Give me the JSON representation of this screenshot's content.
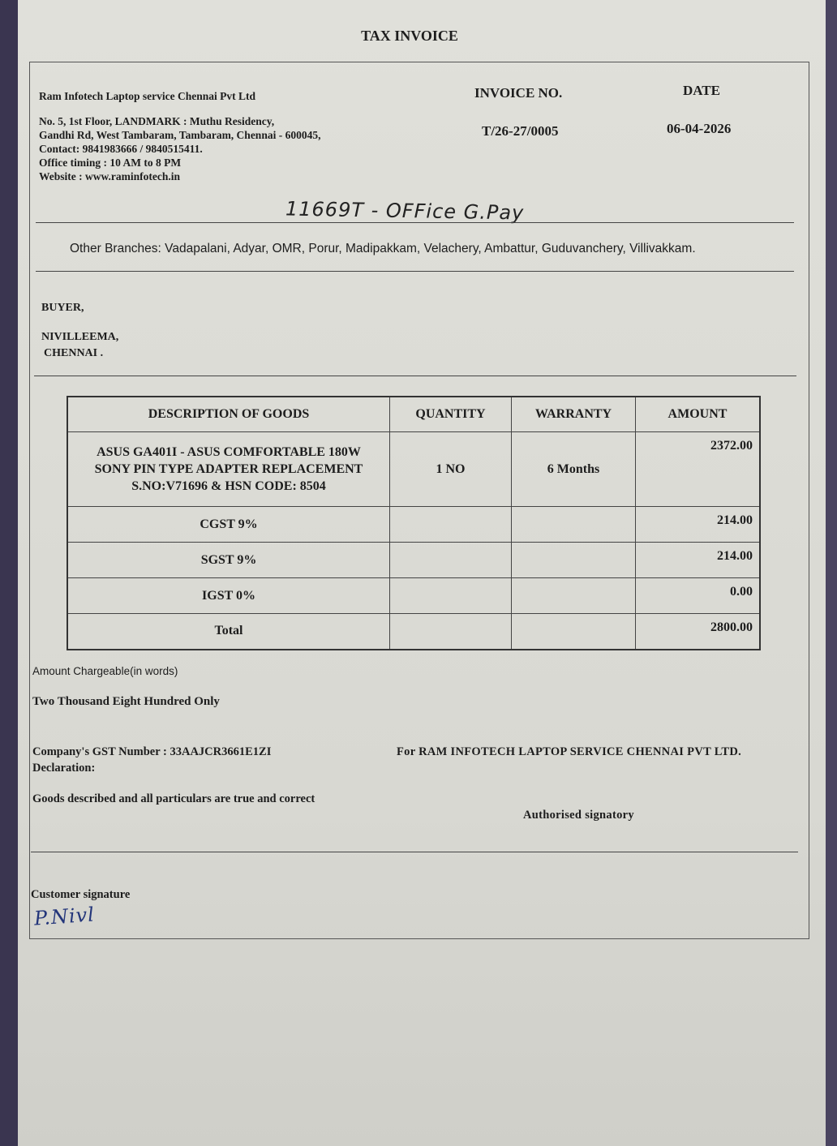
{
  "title": "TAX INVOICE",
  "company": {
    "name": "Ram Infotech Laptop service Chennai Pvt Ltd",
    "address_line1": "No. 5, 1st Floor, LANDMARK : Muthu Residency,",
    "address_line2": "Gandhi Rd, West Tambaram, Tambaram, Chennai - 600045,",
    "contact": "Contact: 9841983666 / 9840515411.",
    "timing": "Office timing : 10 AM to 8 PM",
    "website": "Website : www.raminfotech.in"
  },
  "invoice": {
    "no_label": "INVOICE NO.",
    "no_value": "T/26-27/0005",
    "date_label": "DATE",
    "date_value": "06-04-2026"
  },
  "handwritten_note": "11669T - OFFice G.Pay",
  "branches": "Other Branches: Vadapalani, Adyar, OMR, Porur, Madipakkam, Velachery, Ambattur, Guduvanchery, Villivakkam.",
  "buyer": {
    "label": "BUYER,",
    "name": "NIVILLEEMA,",
    "city": "CHENNAI ."
  },
  "table": {
    "headers": [
      "DESCRIPTION OF GOODS",
      "QUANTITY",
      "WARRANTY",
      "AMOUNT"
    ],
    "item": {
      "desc1": "ASUS GA401I - ASUS COMFORTABLE 180W",
      "desc2": "SONY PIN TYPE ADAPTER REPLACEMENT",
      "desc3": "S.NO:V71696 & HSN CODE: 8504",
      "qty": "1 NO",
      "warranty": "6 Months",
      "amount": "2372.00"
    },
    "rows": [
      {
        "label": "CGST 9%",
        "amount": "214.00"
      },
      {
        "label": "SGST 9%",
        "amount": "214.00"
      },
      {
        "label": "IGST 0%",
        "amount": "0.00"
      },
      {
        "label": "Total",
        "amount": "2800.00"
      }
    ]
  },
  "words_label": "Amount Chargeable(in words)",
  "words_value": "Two Thousand Eight Hundred Only",
  "gst": "Company's GST Number : 33AAJCR3661E1ZI",
  "declaration_label": "Declaration:",
  "declaration_text": "Goods described and all particulars are true and correct",
  "for_company": "For RAM INFOTECH LAPTOP SERVICE CHENNAI PVT LTD.",
  "authorised": "Authorised signatory",
  "customer_signature_label": "Customer signature",
  "customer_signature": "P.Nivl"
}
